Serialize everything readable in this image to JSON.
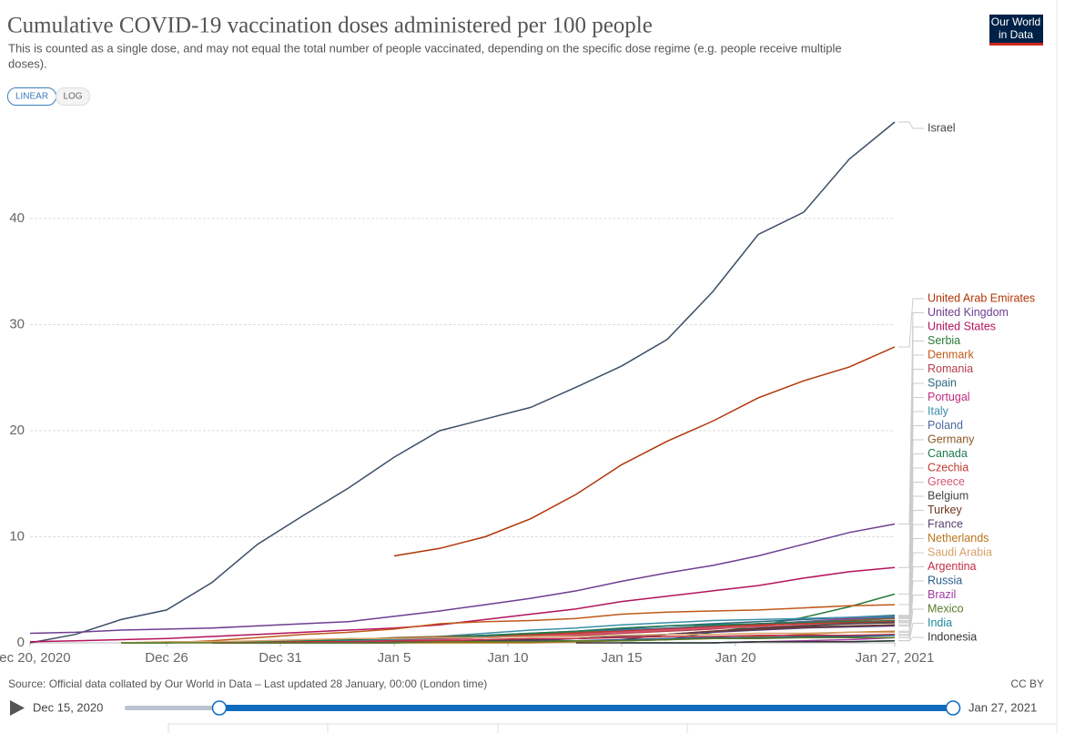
{
  "header": {
    "title": "Cumulative COVID-19 vaccination doses administered per 100 people",
    "subtitle_lines": [
      "This is counted as a single dose, and may not equal the total number of people vaccinated, depending on the specific dose regime (e.g. people receive multiple",
      "doses)."
    ],
    "logo": [
      "Our World",
      "in Data"
    ]
  },
  "controls": {
    "scale_buttons": [
      "LINEAR",
      "LOG"
    ]
  },
  "chart_data": {
    "type": "line",
    "log_scale": false,
    "grid": true,
    "x": [
      "2020-12-20",
      "2020-12-22",
      "2020-12-24",
      "2020-12-26",
      "2020-12-28",
      "2020-12-30",
      "2021-01-01",
      "2021-01-03",
      "2021-01-05",
      "2021-01-07",
      "2021-01-09",
      "2021-01-11",
      "2021-01-13",
      "2021-01-15",
      "2021-01-17",
      "2021-01-19",
      "2021-01-21",
      "2021-01-23",
      "2021-01-25",
      "2021-01-27"
    ],
    "xlim": [
      "2020-12-20",
      "2021-01-27"
    ],
    "xticks": [
      {
        "value": "2020-12-20",
        "label": "Dec 20, 2020"
      },
      {
        "value": "2020-12-26",
        "label": "Dec 26"
      },
      {
        "value": "2020-12-31",
        "label": "Dec 31"
      },
      {
        "value": "2021-01-05",
        "label": "Jan 5"
      },
      {
        "value": "2021-01-10",
        "label": "Jan 10"
      },
      {
        "value": "2021-01-15",
        "label": "Jan 15"
      },
      {
        "value": "2021-01-20",
        "label": "Jan 20"
      },
      {
        "value": "2021-01-27",
        "label": "Jan 27, 2021"
      }
    ],
    "ylim": [
      0,
      50
    ],
    "yticks": [
      0,
      10,
      20,
      30,
      40
    ],
    "series": [
      {
        "name": "Israel",
        "color": "#3c4e66",
        "values": [
          0.0,
          0.8,
          2.2,
          3.1,
          5.7,
          9.3,
          12.0,
          14.6,
          17.5,
          20.0,
          21.1,
          22.2,
          24.1,
          26.1,
          28.6,
          33.1,
          38.5,
          40.6,
          45.6,
          49.1
        ]
      },
      {
        "name": "United Arab Emirates",
        "color": "#b13507",
        "values": [
          null,
          null,
          null,
          null,
          null,
          null,
          null,
          null,
          8.2,
          8.9,
          10.0,
          11.7,
          14.0,
          16.8,
          19.0,
          20.9,
          23.1,
          24.7,
          26.0,
          27.9
        ]
      },
      {
        "name": "United Kingdom",
        "color": "#6d3e91",
        "values": [
          0.9,
          1.0,
          1.2,
          1.3,
          1.4,
          1.6,
          1.8,
          2.0,
          2.5,
          3.0,
          3.6,
          4.2,
          4.9,
          5.8,
          6.6,
          7.3,
          8.2,
          9.3,
          10.4,
          11.2
        ]
      },
      {
        "name": "United States",
        "color": "#b4135c",
        "values": [
          0.1,
          0.2,
          0.3,
          0.4,
          0.6,
          0.8,
          1.0,
          1.2,
          1.4,
          1.7,
          2.2,
          2.7,
          3.2,
          3.9,
          4.4,
          4.9,
          5.4,
          6.1,
          6.7,
          7.1
        ]
      },
      {
        "name": "Serbia",
        "color": "#2a7a3b",
        "values": [
          null,
          null,
          0.0,
          0.0,
          0.1,
          0.1,
          0.1,
          0.1,
          0.1,
          0.1,
          0.2,
          0.2,
          0.2,
          0.2,
          0.3,
          1.0,
          1.6,
          2.4,
          3.4,
          4.6
        ]
      },
      {
        "name": "Denmark",
        "color": "#c05917",
        "values": [
          null,
          null,
          null,
          0.0,
          0.2,
          0.5,
          0.8,
          1.0,
          1.3,
          1.8,
          2.0,
          2.1,
          2.3,
          2.7,
          2.9,
          3.0,
          3.1,
          3.3,
          3.5,
          3.6
        ]
      },
      {
        "name": "Romania",
        "color": "#b83e4d",
        "values": [
          null,
          null,
          null,
          null,
          0.0,
          0.1,
          0.1,
          0.2,
          0.3,
          0.4,
          0.5,
          0.6,
          0.7,
          0.9,
          1.1,
          1.3,
          1.6,
          1.9,
          2.1,
          2.3
        ]
      },
      {
        "name": "Spain",
        "color": "#2c6a7e",
        "values": [
          null,
          null,
          null,
          null,
          0.0,
          0.1,
          0.1,
          0.2,
          0.3,
          0.5,
          0.7,
          0.9,
          1.1,
          1.3,
          1.6,
          1.8,
          2.0,
          2.2,
          2.4,
          2.6
        ]
      },
      {
        "name": "Portugal",
        "color": "#be2a80",
        "values": [
          null,
          null,
          null,
          null,
          0.0,
          0.1,
          0.1,
          0.2,
          0.3,
          0.5,
          0.6,
          0.7,
          0.9,
          1.1,
          1.3,
          1.5,
          1.8,
          2.0,
          2.3,
          2.5
        ]
      },
      {
        "name": "Italy",
        "color": "#3a8ea8",
        "values": [
          null,
          null,
          null,
          null,
          0.0,
          0.0,
          0.1,
          0.2,
          0.3,
          0.6,
          0.9,
          1.2,
          1.4,
          1.7,
          1.9,
          2.1,
          2.2,
          2.3,
          2.4,
          2.5
        ]
      },
      {
        "name": "Poland",
        "color": "#4c6a9c",
        "values": [
          null,
          null,
          null,
          null,
          0.0,
          0.0,
          0.1,
          0.1,
          0.2,
          0.4,
          0.6,
          0.8,
          1.0,
          1.2,
          1.4,
          1.6,
          1.8,
          2.0,
          2.2,
          2.4
        ]
      },
      {
        "name": "Germany",
        "color": "#8b5a2b",
        "values": [
          null,
          null,
          null,
          null,
          0.0,
          0.1,
          0.2,
          0.3,
          0.5,
          0.6,
          0.7,
          0.8,
          1.0,
          1.1,
          1.3,
          1.5,
          1.7,
          1.9,
          2.1,
          2.3
        ]
      },
      {
        "name": "Canada",
        "color": "#1d7a4f",
        "values": [
          null,
          null,
          0.0,
          0.0,
          0.1,
          0.1,
          0.2,
          0.3,
          0.4,
          0.5,
          0.7,
          0.9,
          1.1,
          1.4,
          1.6,
          1.7,
          1.8,
          1.9,
          2.0,
          2.1
        ]
      },
      {
        "name": "Czechia",
        "color": "#c0392b",
        "values": [
          null,
          null,
          null,
          null,
          0.0,
          0.0,
          0.1,
          0.1,
          0.2,
          0.3,
          0.5,
          0.7,
          0.9,
          1.1,
          1.3,
          1.5,
          1.7,
          1.8,
          1.9,
          2.0
        ]
      },
      {
        "name": "Greece",
        "color": "#d35774",
        "values": [
          null,
          null,
          null,
          null,
          0.0,
          0.0,
          0.0,
          0.1,
          0.2,
          0.3,
          0.5,
          0.6,
          0.8,
          1.0,
          1.2,
          1.4,
          1.5,
          1.7,
          1.8,
          1.9
        ]
      },
      {
        "name": "Belgium",
        "color": "#444444",
        "values": [
          null,
          null,
          null,
          null,
          0.0,
          0.0,
          0.0,
          0.0,
          0.0,
          0.1,
          0.2,
          0.3,
          0.4,
          0.6,
          0.8,
          1.1,
          1.4,
          1.6,
          1.8,
          1.9
        ]
      },
      {
        "name": "Turkey",
        "color": "#70361f",
        "values": [
          null,
          null,
          null,
          null,
          null,
          null,
          null,
          null,
          null,
          null,
          null,
          null,
          null,
          0.3,
          0.8,
          1.1,
          1.3,
          1.5,
          1.6,
          1.7
        ]
      },
      {
        "name": "France",
        "color": "#5a3d6b",
        "values": [
          null,
          null,
          null,
          null,
          0.0,
          0.0,
          0.0,
          0.0,
          0.0,
          0.1,
          0.1,
          0.2,
          0.4,
          0.6,
          0.8,
          1.0,
          1.2,
          1.4,
          1.5,
          1.6
        ]
      },
      {
        "name": "Netherlands",
        "color": "#b8751a",
        "values": [
          null,
          null,
          null,
          null,
          null,
          null,
          null,
          null,
          0.0,
          0.0,
          0.0,
          0.0,
          0.1,
          0.2,
          0.3,
          0.4,
          0.6,
          0.8,
          1.0,
          1.1
        ]
      },
      {
        "name": "Saudi Arabia",
        "color": "#d6a06b",
        "values": [
          null,
          null,
          0.0,
          0.1,
          0.1,
          0.2,
          0.3,
          0.4,
          0.4,
          0.5,
          0.5,
          0.6,
          0.6,
          0.7,
          0.8,
          0.8,
          0.9,
          0.9,
          1.0,
          1.0
        ]
      },
      {
        "name": "Argentina",
        "color": "#c42e46",
        "values": [
          null,
          null,
          null,
          null,
          0.0,
          0.0,
          0.1,
          0.1,
          0.2,
          0.2,
          0.3,
          0.4,
          0.4,
          0.5,
          0.6,
          0.6,
          0.7,
          0.7,
          0.7,
          0.8
        ]
      },
      {
        "name": "Russia",
        "color": "#2c5f8a",
        "values": [
          null,
          null,
          null,
          null,
          null,
          null,
          null,
          null,
          null,
          null,
          null,
          0.1,
          0.2,
          0.3,
          0.4,
          0.5,
          0.5,
          0.6,
          0.6,
          0.7
        ]
      },
      {
        "name": "Brazil",
        "color": "#a23aa3",
        "values": [
          null,
          null,
          null,
          null,
          null,
          null,
          null,
          null,
          null,
          null,
          null,
          null,
          null,
          null,
          null,
          0.0,
          0.1,
          0.2,
          0.3,
          0.5
        ]
      },
      {
        "name": "Mexico",
        "color": "#5a7a2a",
        "values": [
          null,
          null,
          0.0,
          0.0,
          0.0,
          0.0,
          0.0,
          0.0,
          0.0,
          0.1,
          0.1,
          0.1,
          0.2,
          0.2,
          0.3,
          0.4,
          0.4,
          0.5,
          0.5,
          0.5
        ]
      },
      {
        "name": "India",
        "color": "#1a8a9c",
        "values": [
          null,
          null,
          null,
          null,
          null,
          null,
          null,
          null,
          null,
          null,
          null,
          null,
          null,
          0.0,
          0.0,
          0.0,
          0.1,
          0.1,
          0.1,
          0.2
        ]
      },
      {
        "name": "Indonesia",
        "color": "#333333",
        "values": [
          null,
          null,
          null,
          null,
          null,
          null,
          null,
          null,
          null,
          null,
          null,
          null,
          0.0,
          0.0,
          0.0,
          0.0,
          0.1,
          0.1,
          0.1,
          0.2
        ]
      }
    ]
  },
  "footer": {
    "source": "Source: Official data collated by Our World in Data – Last updated 28 January, 00:00 (London time)",
    "license": "CC BY"
  },
  "timeline": {
    "start_label": "Dec 15, 2020",
    "end_label": "Jan 27, 2021"
  }
}
